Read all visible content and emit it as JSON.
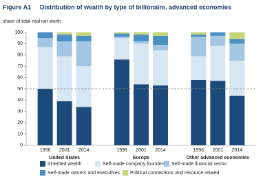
{
  "chart_data": {
    "type": "stacked_bar",
    "figure_label": "Figure A1",
    "title": "Distribution of wealth by type of billionaire, advanced economies",
    "ylabel": "share of total real net worth",
    "categories": [
      "1996",
      "2001",
      "2014",
      "1996",
      "2001",
      "2014",
      "1996",
      "2001",
      "2014"
    ],
    "groups": [
      "United States",
      "Europe",
      "Other advanced economies"
    ],
    "series": [
      {
        "name": "Inherited wealth",
        "color": "#1c4a7a",
        "values": [
          50,
          39,
          34,
          76,
          54,
          53,
          58,
          57,
          44
        ]
      },
      {
        "name": "Self-made company founders",
        "color": "#d7e6f3",
        "values": [
          37,
          40,
          36,
          19,
          36,
          31,
          21,
          31,
          31
        ]
      },
      {
        "name": "Self-made financial sector",
        "color": "#a3c6e2",
        "values": [
          8,
          13,
          22,
          1,
          2,
          5,
          17,
          9,
          15
        ]
      },
      {
        "name": "Self-made owners and executives",
        "color": "#4b90c2",
        "values": [
          5,
          6,
          5,
          3,
          6,
          8,
          2,
          3,
          4
        ]
      },
      {
        "name": "Political connections and resource related",
        "color": "#c6d77b",
        "values": [
          0,
          2,
          3,
          1,
          2,
          3,
          2,
          0,
          6
        ]
      }
    ],
    "ylim": [
      0,
      100
    ],
    "yticks": [
      0,
      10,
      20,
      30,
      40,
      50,
      60,
      70,
      80,
      90,
      100
    ],
    "refline": 50
  }
}
